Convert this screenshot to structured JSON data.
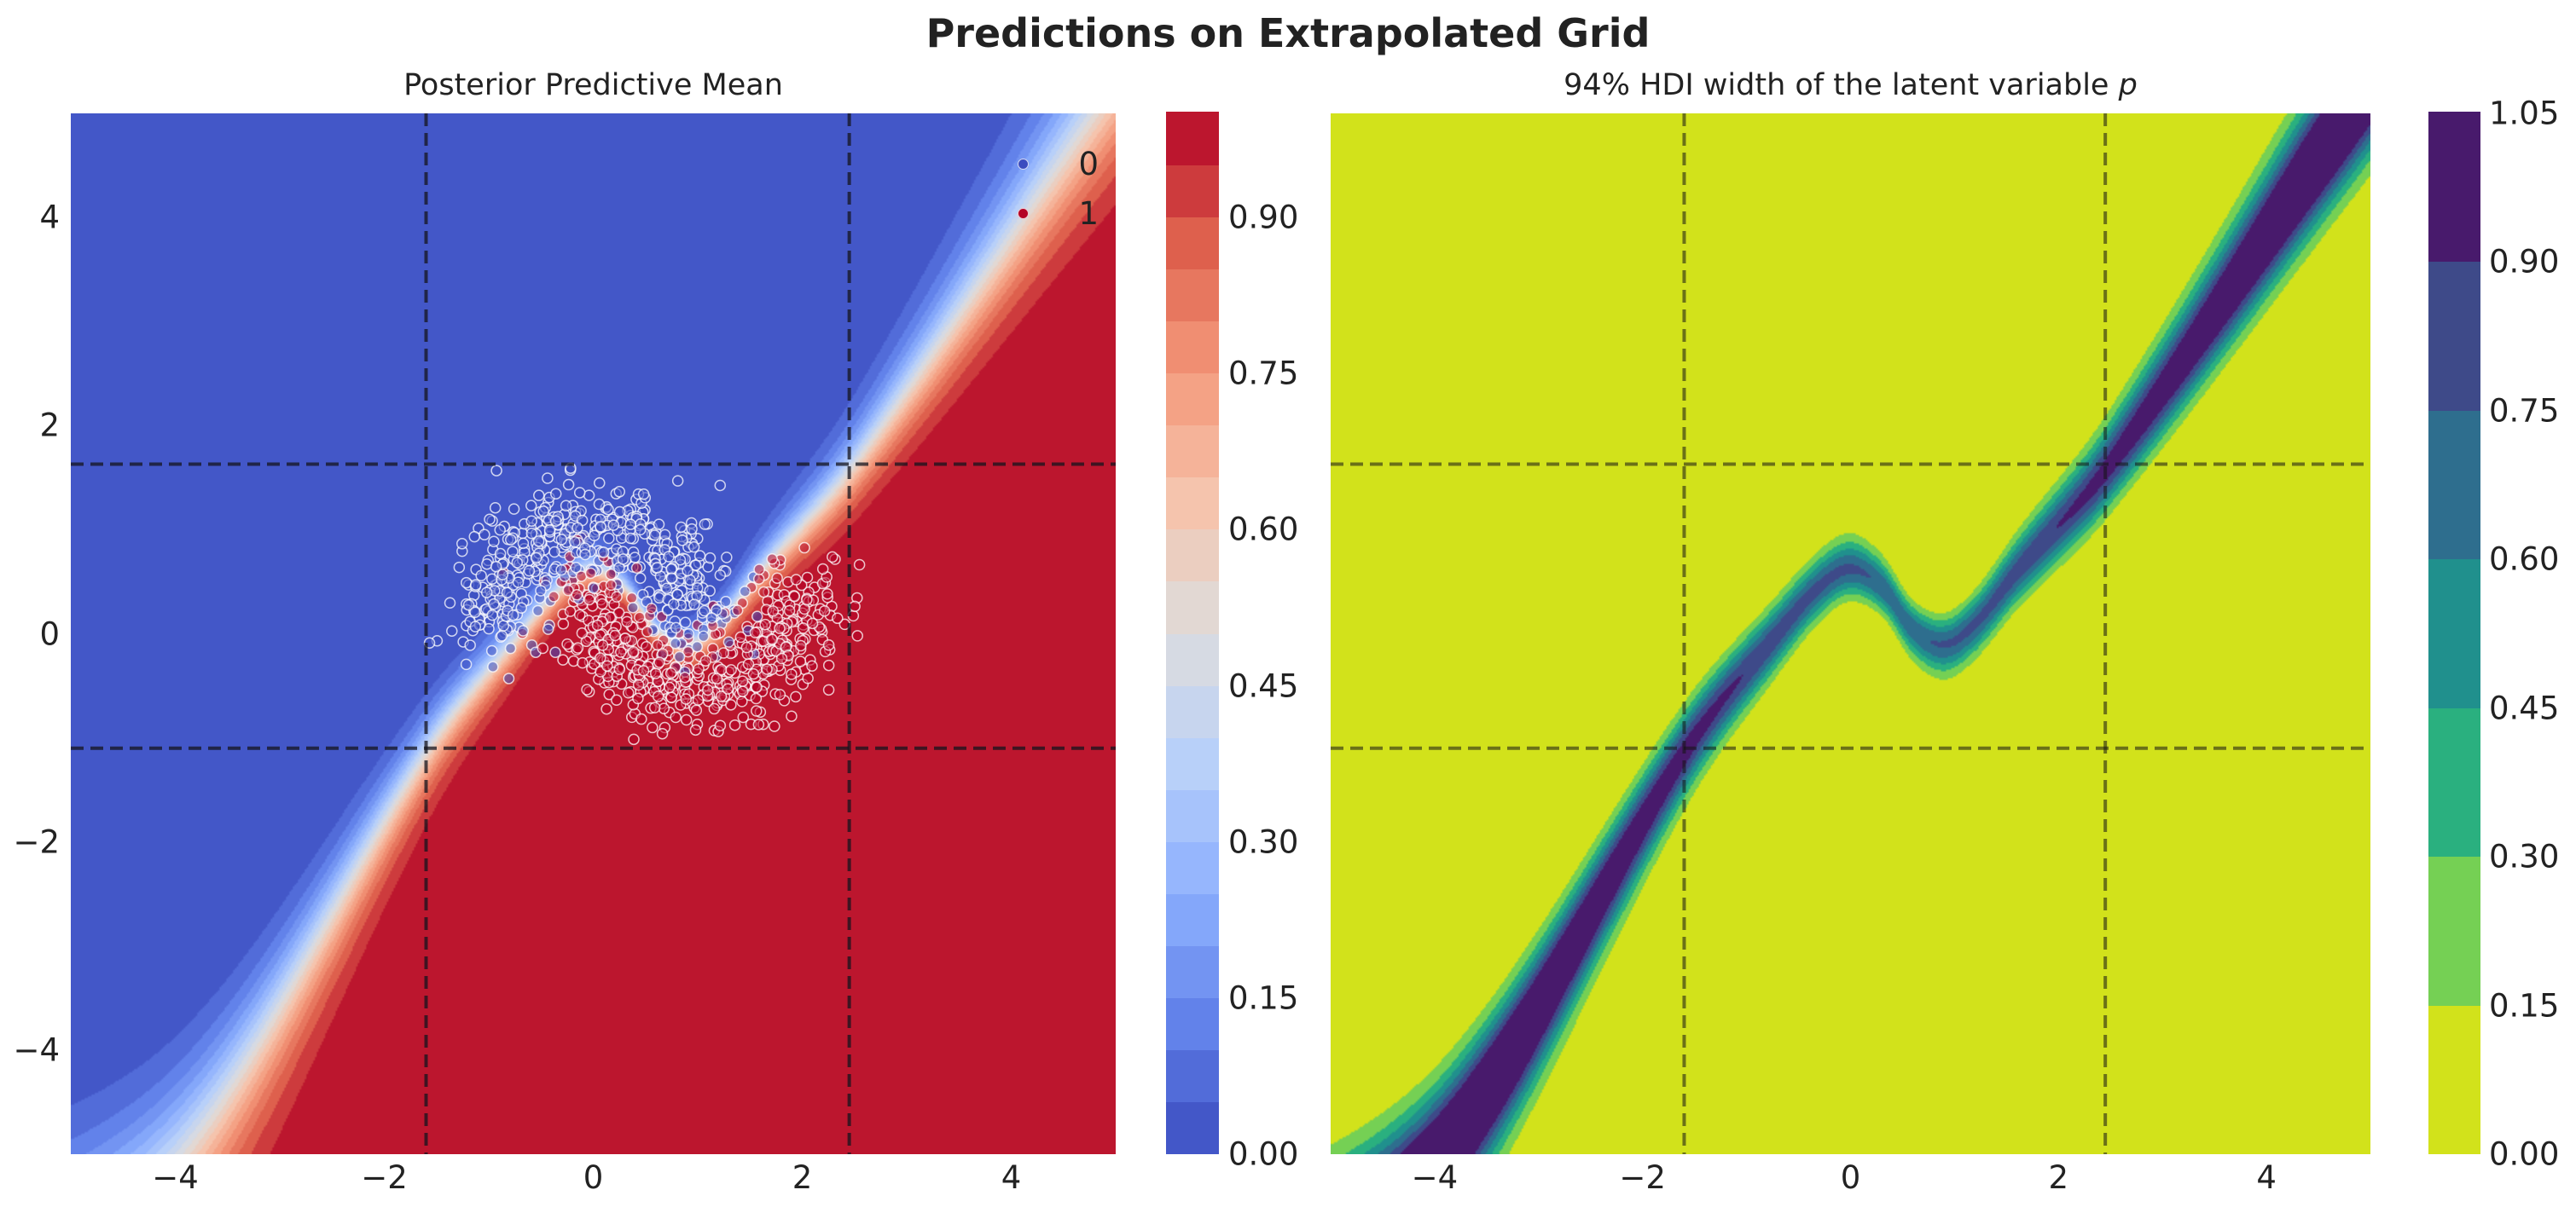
{
  "title": "Predictions on Extrapolated Grid",
  "chart_data": [
    {
      "type": "heatmap",
      "subtype": "filled-contour-with-scatter",
      "title": "Posterior Predictive Mean",
      "xlim": [
        -5,
        5
      ],
      "ylim": [
        -5,
        5
      ],
      "xticks": [
        "−4",
        "−2",
        "0",
        "2",
        "4"
      ],
      "xtick_values": [
        -4,
        -2,
        0,
        2,
        4
      ],
      "yticks": [
        "4",
        "2",
        "0",
        "−2",
        "−4"
      ],
      "ytick_values": [
        4,
        2,
        0,
        -2,
        -4
      ],
      "vlines": [
        -1.6,
        2.45
      ],
      "hlines": [
        1.63,
        -1.1
      ],
      "decision_boundary": [
        [
          -6,
          -6.6
        ],
        [
          -3.93,
          -5
        ],
        [
          -1.57,
          -1.1
        ],
        [
          -0.7,
          0.0
        ],
        [
          -0.3,
          0.45
        ],
        [
          0,
          0.62
        ],
        [
          0.3,
          0.45
        ],
        [
          0.6,
          0.05
        ],
        [
          0.9,
          -0.1
        ],
        [
          1.2,
          0.1
        ],
        [
          1.6,
          0.6
        ],
        [
          2.5,
          1.63
        ],
        [
          4.79,
          5
        ],
        [
          6,
          6.8
        ]
      ],
      "colormap": "coolwarm",
      "levels_step": 0.05,
      "colorbar": {
        "range": [
          0,
          1
        ],
        "tick_values": [
          0,
          0.15,
          0.3,
          0.45,
          0.6,
          0.75,
          0.9
        ],
        "tick_labels": [
          "0.00",
          "0.15",
          "0.30",
          "0.45",
          "0.60",
          "0.75",
          "0.90"
        ]
      },
      "legend": {
        "placement": "top-right",
        "entries": [
          {
            "label": "0",
            "color": "#3b4cc0"
          },
          {
            "label": "1",
            "color": "#b40426"
          }
        ]
      },
      "scatter": {
        "kind": "two-moons",
        "n_per_class": 500,
        "noise": 0.25,
        "seed": 7
      }
    },
    {
      "type": "heatmap",
      "subtype": "filled-contour",
      "title_prefix": "94% HDI width of the latent variable ",
      "title_var": "p",
      "xlim": [
        -5,
        5
      ],
      "ylim": [
        -5,
        5
      ],
      "xticks": [
        "−4",
        "−2",
        "0",
        "2",
        "4"
      ],
      "xtick_values": [
        -4,
        -2,
        0,
        2,
        4
      ],
      "vlines": [
        -1.6,
        2.45
      ],
      "hlines": [
        1.63,
        -1.1
      ],
      "colormap": "viridis_r",
      "level_colors": [
        "#d2e21b",
        "#75d054",
        "#2ab07f",
        "#20908d",
        "#2e6e8e",
        "#3e4a89",
        "#481a6c"
      ],
      "colorbar": {
        "range": [
          0,
          1.05
        ],
        "tick_values": [
          0,
          0.15,
          0.3,
          0.45,
          0.6,
          0.75,
          0.9,
          1.05
        ],
        "tick_labels": [
          "0.00",
          "0.15",
          "0.30",
          "0.45",
          "0.60",
          "0.75",
          "0.90",
          "1.05"
        ]
      }
    }
  ]
}
